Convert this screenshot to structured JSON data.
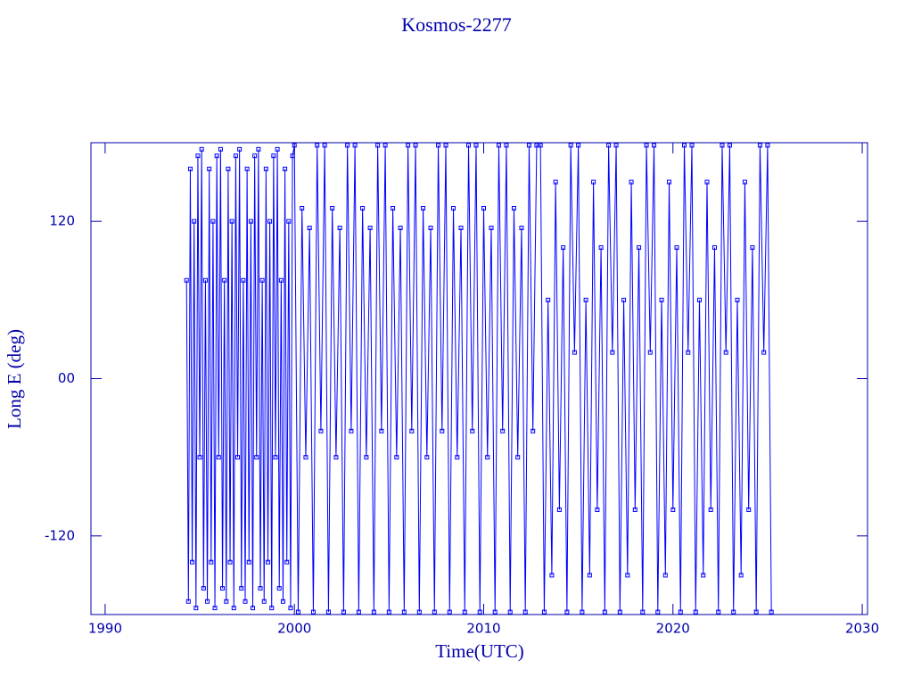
{
  "chart_data": {
    "type": "line",
    "title": "Kosmos-2277",
    "xlabel": "Time(UTC)",
    "ylabel": "Long E (deg)",
    "xlim": [
      1989.25,
      2030.28
    ],
    "ylim": [
      -180,
      180
    ],
    "xticks": [
      1990,
      2000,
      2010,
      2020,
      2030
    ],
    "yticks": [
      -120,
      {
        "value": 0,
        "label": "00"
      },
      120
    ],
    "axis_color": "#0000aa",
    "x": [
      1994.3,
      1994.4,
      1994.5,
      1994.6,
      1994.7,
      1994.8,
      1994.9,
      1995,
      1995.1,
      1995.2,
      1995.3,
      1995.4,
      1995.5,
      1995.6,
      1995.7,
      1995.8,
      1995.9,
      1996,
      1996.1,
      1996.2,
      1996.3,
      1996.4,
      1996.5,
      1996.6,
      1996.7,
      1996.8,
      1996.9,
      1997,
      1997.1,
      1997.2,
      1997.3,
      1997.4,
      1997.5,
      1997.6,
      1997.7,
      1997.8,
      1997.9,
      1998,
      1998.1,
      1998.2,
      1998.3,
      1998.4,
      1998.5,
      1998.6,
      1998.7,
      1998.8,
      1998.9,
      1999,
      1999.1,
      1999.2,
      1999.3,
      1999.4,
      1999.5,
      1999.6,
      1999.7,
      1999.8,
      1999.9,
      2000,
      2000.2,
      2000.4,
      2000.6,
      2000.8,
      2001,
      2001.2,
      2001.4,
      2001.6,
      2001.8,
      2002,
      2002.2,
      2002.4,
      2002.6,
      2002.8,
      2003,
      2003.2,
      2003.4,
      2003.6,
      2003.8,
      2004,
      2004.2,
      2004.4,
      2004.6,
      2004.8,
      2005,
      2005.2,
      2005.4,
      2005.6,
      2005.8,
      2006,
      2006.2,
      2006.4,
      2006.6,
      2006.8,
      2007,
      2007.2,
      2007.4,
      2007.6,
      2007.8,
      2008,
      2008.2,
      2008.4,
      2008.6,
      2008.8,
      2009,
      2009.2,
      2009.4,
      2009.6,
      2009.8,
      2010,
      2010.2,
      2010.4,
      2010.6,
      2010.8,
      2011,
      2011.2,
      2011.4,
      2011.6,
      2011.8,
      2012,
      2012.2,
      2012.4,
      2012.6,
      2012.8,
      2013,
      2013.2,
      2013.4,
      2013.6,
      2013.8,
      2014,
      2014.2,
      2014.4,
      2014.6,
      2014.8,
      2015,
      2015.2,
      2015.4,
      2015.6,
      2015.8,
      2016,
      2016.2,
      2016.4,
      2016.6,
      2016.8,
      2017,
      2017.2,
      2017.4,
      2017.6,
      2017.8,
      2018,
      2018.2,
      2018.4,
      2018.6,
      2018.8,
      2019,
      2019.2,
      2019.4,
      2019.6,
      2019.8,
      2020,
      2020.2,
      2020.4,
      2020.6,
      2020.8,
      2021,
      2021.2,
      2021.4,
      2021.6,
      2021.8,
      2022,
      2022.2,
      2022.4,
      2022.6,
      2022.8,
      2023,
      2023.2,
      2023.4,
      2023.6,
      2023.8,
      2024,
      2024.2,
      2024.4,
      2024.6,
      2024.8,
      2025,
      2025.2
    ],
    "series": [
      {
        "color": "#0000ff",
        "values": [
          75,
          -170,
          160,
          -140,
          120,
          -175,
          170,
          -60,
          175,
          -160,
          75,
          -170,
          160,
          -140,
          120,
          -175,
          170,
          -60,
          175,
          -160,
          75,
          -170,
          160,
          -140,
          120,
          -175,
          170,
          -60,
          175,
          -160,
          75,
          -170,
          160,
          -140,
          120,
          -175,
          170,
          -60,
          175,
          -160,
          75,
          -170,
          160,
          -140,
          120,
          -175,
          170,
          -60,
          175,
          -160,
          75,
          -170,
          160,
          -140,
          120,
          -175,
          170,
          178,
          -178,
          130,
          -60,
          115,
          -178,
          178,
          -40,
          178,
          -178,
          130,
          -60,
          115,
          -178,
          178,
          -40,
          178,
          -178,
          130,
          -60,
          115,
          -178,
          178,
          -40,
          178,
          -178,
          130,
          -60,
          115,
          -178,
          178,
          -40,
          178,
          -178,
          130,
          -60,
          115,
          -178,
          178,
          -40,
          178,
          -178,
          130,
          -60,
          115,
          -178,
          178,
          -40,
          178,
          -178,
          130,
          -60,
          115,
          -178,
          178,
          -40,
          178,
          -178,
          130,
          -60,
          115,
          -178,
          178,
          -40,
          178,
          178,
          -178,
          60,
          -150,
          150,
          -100,
          100,
          -178,
          178,
          20,
          178,
          -178,
          60,
          -150,
          150,
          -100,
          100,
          -178,
          178,
          20,
          178,
          -178,
          60,
          -150,
          150,
          -100,
          100,
          -178,
          178,
          20,
          178,
          -178,
          60,
          -150,
          150,
          -100,
          100,
          -178,
          178,
          20,
          178,
          -178,
          60,
          -150,
          150,
          -100,
          100,
          -178,
          178,
          20,
          178,
          -178,
          60,
          -150,
          150,
          -100,
          100,
          -178,
          178,
          20,
          178,
          -178
        ]
      }
    ]
  }
}
